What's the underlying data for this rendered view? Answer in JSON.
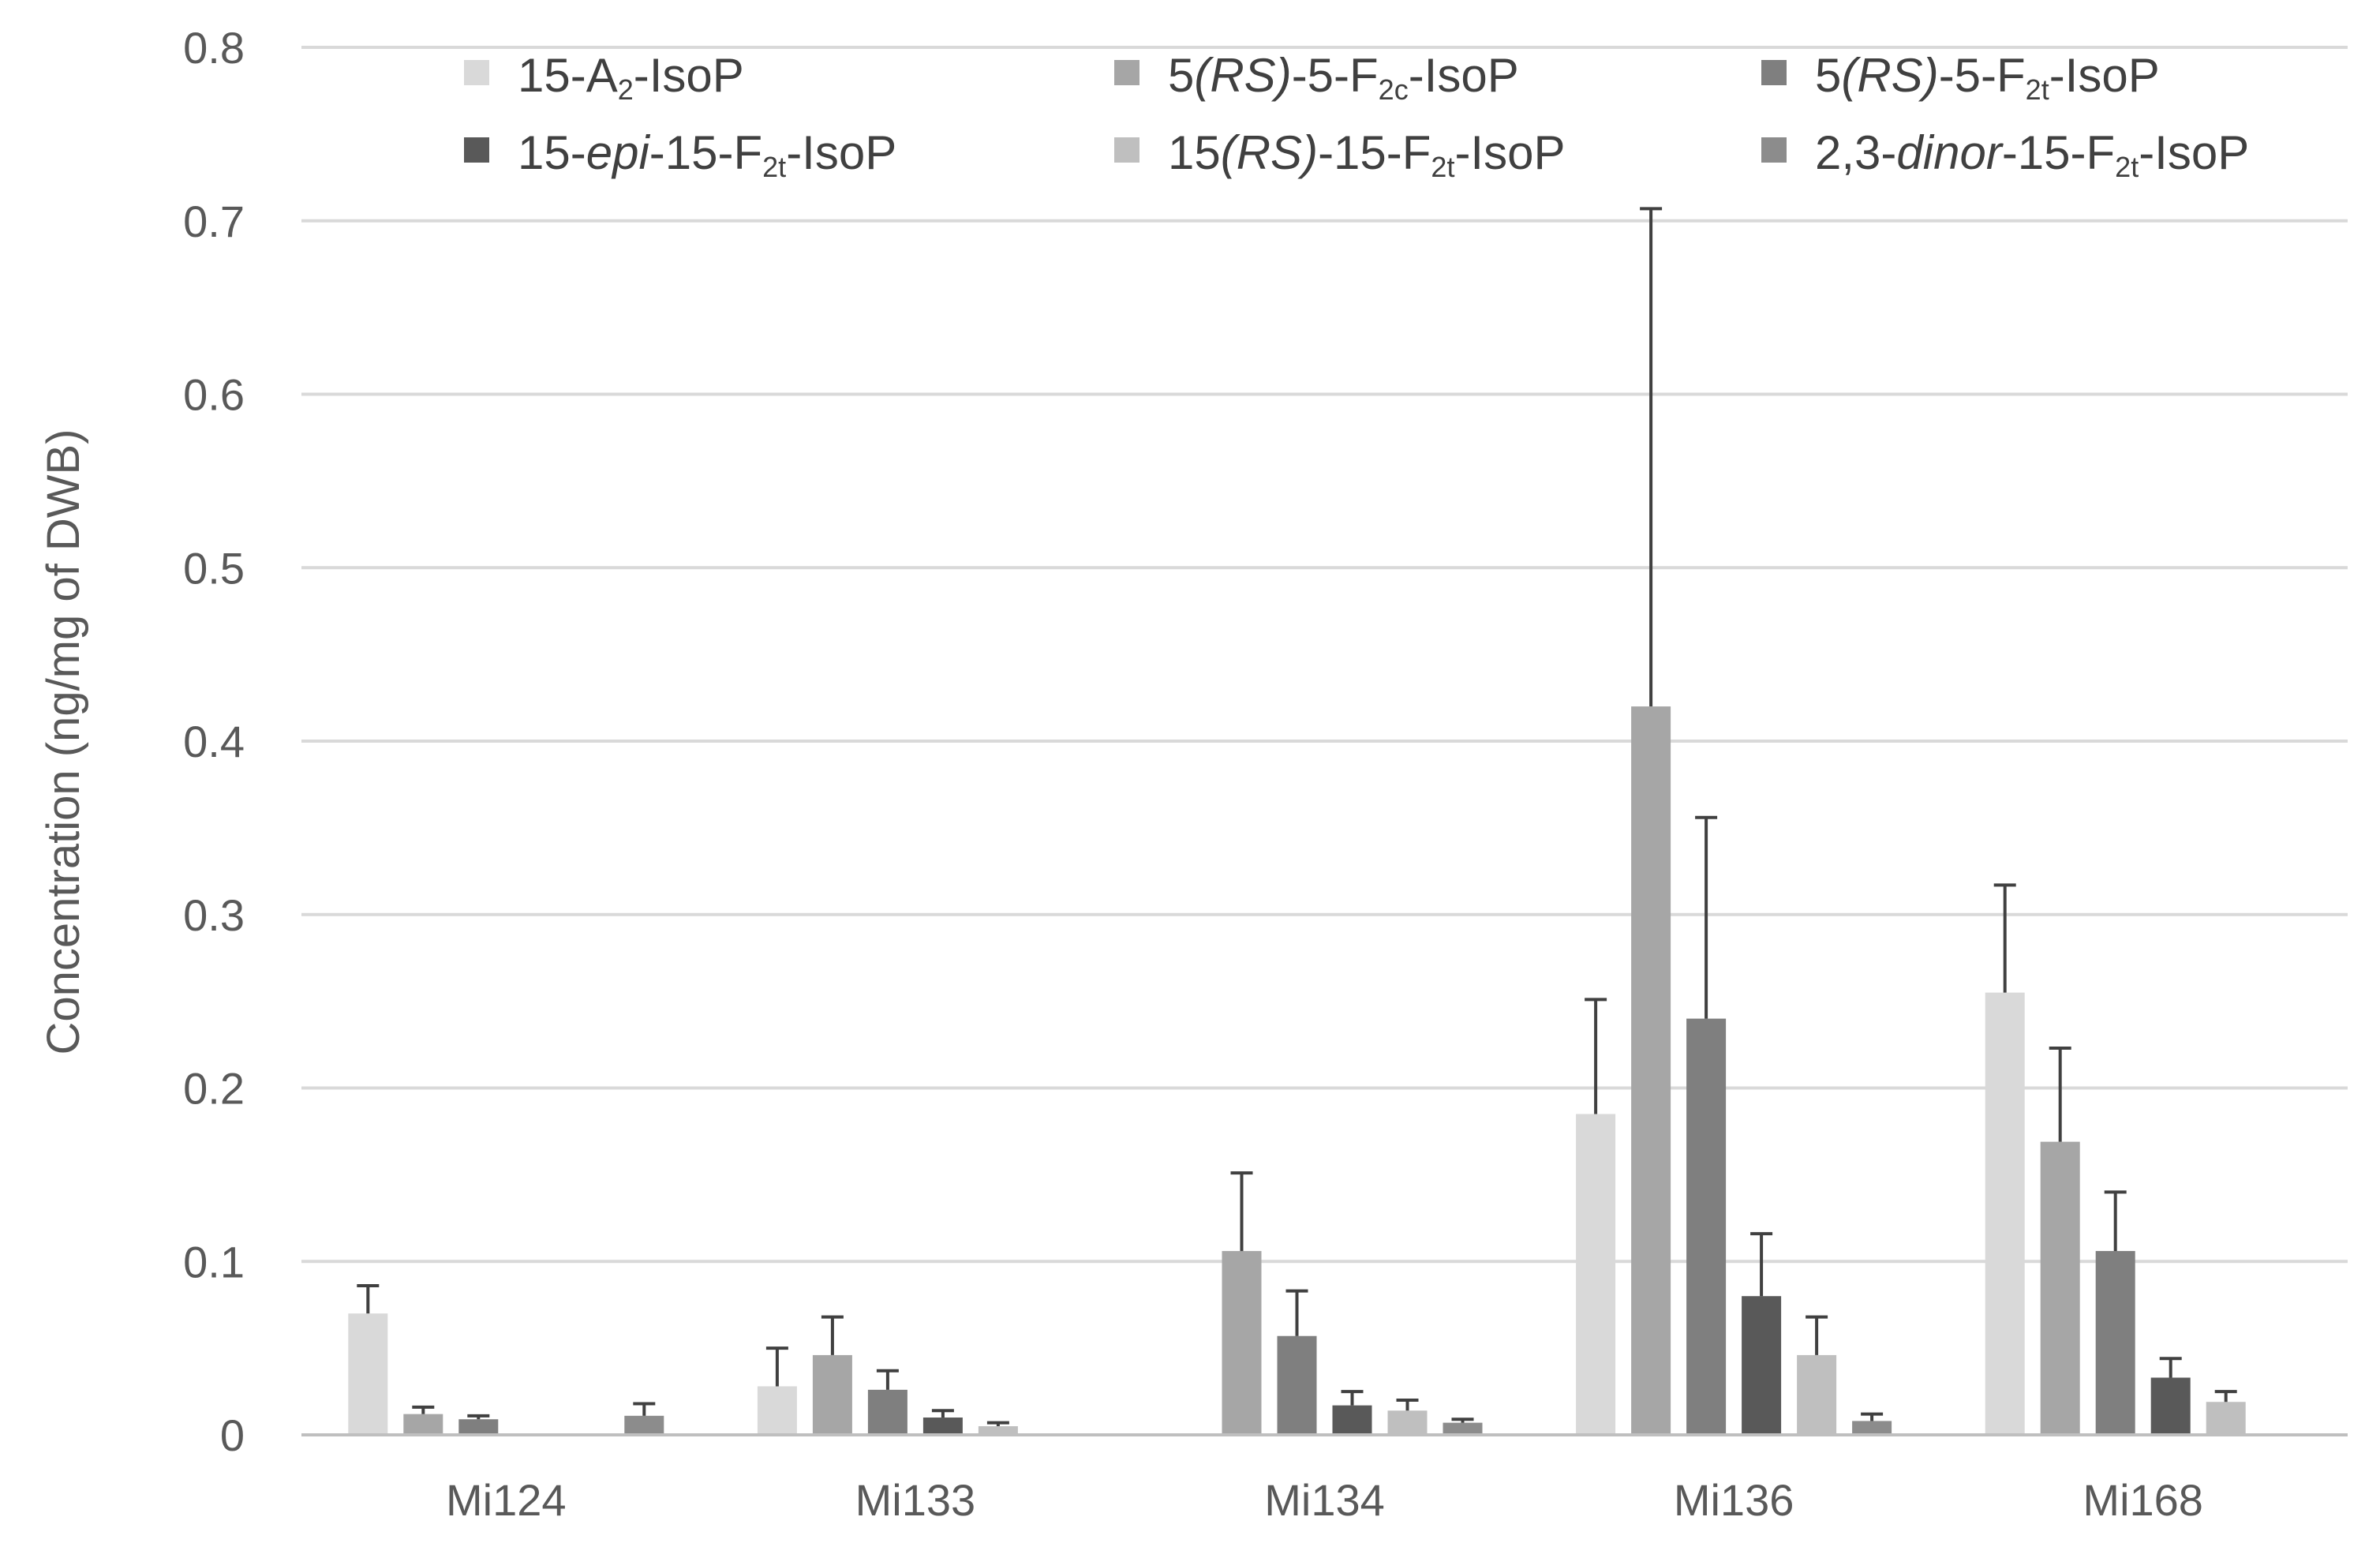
{
  "chart_data": {
    "type": "bar",
    "ylabel": "Concentration (ng/mg of DWB)",
    "ylim": [
      0,
      0.8
    ],
    "yticks": [
      "0",
      "0.1",
      "0.2",
      "0.3",
      "0.4",
      "0.5",
      "0.6",
      "0.7",
      "0.8"
    ],
    "grid": true,
    "legend_position": "top",
    "error_bars": true,
    "categories": [
      "Mi124",
      "Mi133",
      "Mi134",
      "Mi136",
      "Mi168"
    ],
    "series": [
      {
        "name": "15-A2-IsoP",
        "legend_parts": [
          {
            "t": "15-A",
            "s": "n"
          },
          {
            "t": "2",
            "s": "sub"
          },
          {
            "t": "-IsoP",
            "s": "n"
          }
        ],
        "color": "#d9d9d9",
        "values": [
          0.07,
          0.028,
          0,
          0.185,
          0.255
        ],
        "errors": [
          0.016,
          0.022,
          0,
          0.066,
          0.062
        ]
      },
      {
        "name": "5(RS)-5-F2c-IsoP",
        "legend_parts": [
          {
            "t": "5",
            "s": "n"
          },
          {
            "t": "(RS)",
            "s": "it"
          },
          {
            "t": "-5-F",
            "s": "n"
          },
          {
            "t": "2c",
            "s": "sub"
          },
          {
            "t": "-IsoP",
            "s": "n"
          }
        ],
        "color": "#a6a6a6",
        "values": [
          0.012,
          0.046,
          0.106,
          0.42,
          0.169
        ],
        "errors": [
          0.004,
          0.022,
          0.045,
          0.287,
          0.054
        ]
      },
      {
        "name": "5(RS)-5-F2t-IsoP",
        "legend_parts": [
          {
            "t": "5",
            "s": "n"
          },
          {
            "t": "(RS)",
            "s": "it"
          },
          {
            "t": "-5-F",
            "s": "n"
          },
          {
            "t": "2t",
            "s": "sub"
          },
          {
            "t": "-IsoP",
            "s": "n"
          }
        ],
        "color": "#7f7f7f",
        "values": [
          0.009,
          0.026,
          0.057,
          0.24,
          0.106
        ],
        "errors": [
          0.002,
          0.011,
          0.026,
          0.116,
          0.034
        ]
      },
      {
        "name": "15-epi-15-F2t-IsoP",
        "legend_parts": [
          {
            "t": "15-",
            "s": "n"
          },
          {
            "t": "epi",
            "s": "it"
          },
          {
            "t": "-15-F",
            "s": "n"
          },
          {
            "t": "2t",
            "s": "sub"
          },
          {
            "t": "-IsoP",
            "s": "n"
          }
        ],
        "color": "#595959",
        "values": [
          0,
          0.01,
          0.017,
          0.08,
          0.033
        ],
        "errors": [
          0,
          0.004,
          0.008,
          0.036,
          0.011
        ]
      },
      {
        "name": "15(RS)-15-F2t-IsoP",
        "legend_parts": [
          {
            "t": "15",
            "s": "n"
          },
          {
            "t": "(RS)",
            "s": "it"
          },
          {
            "t": "-15-F",
            "s": "n"
          },
          {
            "t": "2t",
            "s": "sub"
          },
          {
            "t": "-IsoP",
            "s": "n"
          }
        ],
        "color": "#bfbfbf",
        "values": [
          0,
          0.005,
          0.014,
          0.046,
          0.019
        ],
        "errors": [
          0,
          0.002,
          0.006,
          0.022,
          0.006
        ]
      },
      {
        "name": "2,3-dinor-15-F2t-IsoP",
        "legend_parts": [
          {
            "t": "2,3-",
            "s": "n"
          },
          {
            "t": "dinor",
            "s": "it"
          },
          {
            "t": "-15-F",
            "s": "n"
          },
          {
            "t": "2t",
            "s": "sub"
          },
          {
            "t": "-IsoP",
            "s": "n"
          }
        ],
        "color": "#8c8c8c",
        "values": [
          0.011,
          0,
          0.007,
          0.008,
          0
        ],
        "errors": [
          0.007,
          0,
          0.002,
          0.004,
          0
        ]
      }
    ]
  }
}
